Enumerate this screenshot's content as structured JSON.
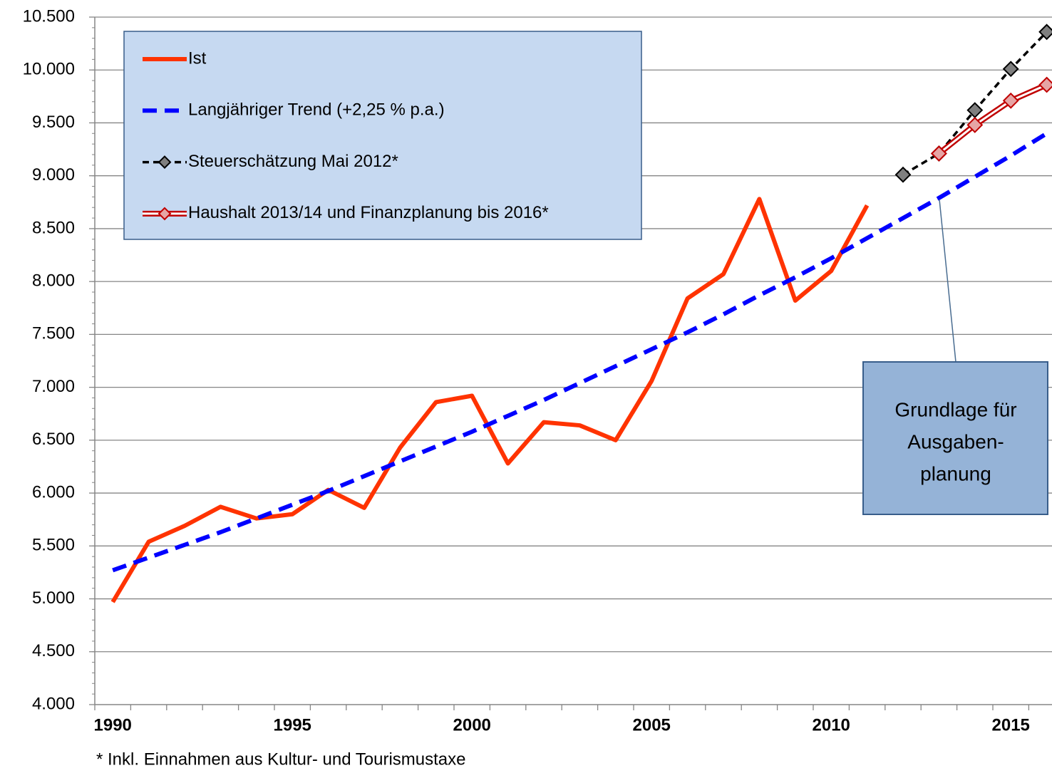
{
  "chart_data": {
    "type": "line",
    "x": [
      1990,
      1991,
      1992,
      1993,
      1994,
      1995,
      1996,
      1997,
      1998,
      1999,
      2000,
      2001,
      2002,
      2003,
      2004,
      2005,
      2006,
      2007,
      2008,
      2009,
      2010,
      2011,
      2012,
      2013,
      2014,
      2015,
      2016
    ],
    "xlim": [
      1989.5,
      2016.5
    ],
    "xticks": [
      1990,
      1995,
      2000,
      2005,
      2010,
      2015
    ],
    "ylim": [
      4000,
      10500
    ],
    "yticks": [
      {
        "value": 4000,
        "label": "4.000"
      },
      {
        "value": 4500,
        "label": "4.500"
      },
      {
        "value": 5000,
        "label": "5.000"
      },
      {
        "value": 5500,
        "label": "5.500"
      },
      {
        "value": 6000,
        "label": "6.000"
      },
      {
        "value": 6500,
        "label": "6.500"
      },
      {
        "value": 7000,
        "label": "7.000"
      },
      {
        "value": 7500,
        "label": "7.500"
      },
      {
        "value": 8000,
        "label": "8.000"
      },
      {
        "value": 8500,
        "label": "8.500"
      },
      {
        "value": 9000,
        "label": "9.000"
      },
      {
        "value": 9500,
        "label": "9.500"
      },
      {
        "value": 10000,
        "label": "10.000"
      },
      {
        "value": 10500,
        "label": "10.500"
      }
    ],
    "grid": true,
    "legend": "top-left",
    "series": [
      {
        "name": "Ist",
        "color": "#ff3300",
        "style": "solid",
        "values": [
          4970,
          5540,
          5690,
          5870,
          5760,
          5800,
          6030,
          5860,
          6430,
          6860,
          6920,
          6280,
          6670,
          6640,
          6500,
          7060,
          7840,
          8070,
          8780,
          7820,
          8100,
          8720,
          null,
          null,
          null,
          null,
          null
        ]
      },
      {
        "name": "Langjähriger Trend (+2,25 % p.a.)",
        "color": "#0000ff",
        "style": "dashed",
        "values": [
          5270,
          5390,
          5510,
          5630,
          5760,
          5890,
          6020,
          6160,
          6300,
          6440,
          6580,
          6730,
          6880,
          7040,
          7200,
          7360,
          7520,
          7690,
          7870,
          8040,
          8220,
          8410,
          8600,
          8790,
          8990,
          9190,
          9400
        ]
      },
      {
        "name": "Steuerschätzung Mai 2012*",
        "color": "#000000",
        "style": "dotted-marker",
        "values": [
          null,
          null,
          null,
          null,
          null,
          null,
          null,
          null,
          null,
          null,
          null,
          null,
          null,
          null,
          null,
          null,
          null,
          null,
          null,
          null,
          null,
          null,
          9010,
          9210,
          9620,
          10010,
          10360
        ]
      },
      {
        "name": "Haushalt 2013/14 und Finanzplanung bis 2016*",
        "color": "#c00000",
        "style": "double-marker",
        "values": [
          null,
          null,
          null,
          null,
          null,
          null,
          null,
          null,
          null,
          null,
          null,
          null,
          null,
          null,
          null,
          null,
          null,
          null,
          null,
          null,
          null,
          null,
          null,
          9210,
          9480,
          9710,
          9860
        ]
      }
    ],
    "annotation": {
      "lines": [
        "Grundlage für",
        "Ausgaben-",
        "planung"
      ]
    },
    "footnote": "* Inkl. Einnahmen aus Kultur- und Tourismustaxe"
  }
}
